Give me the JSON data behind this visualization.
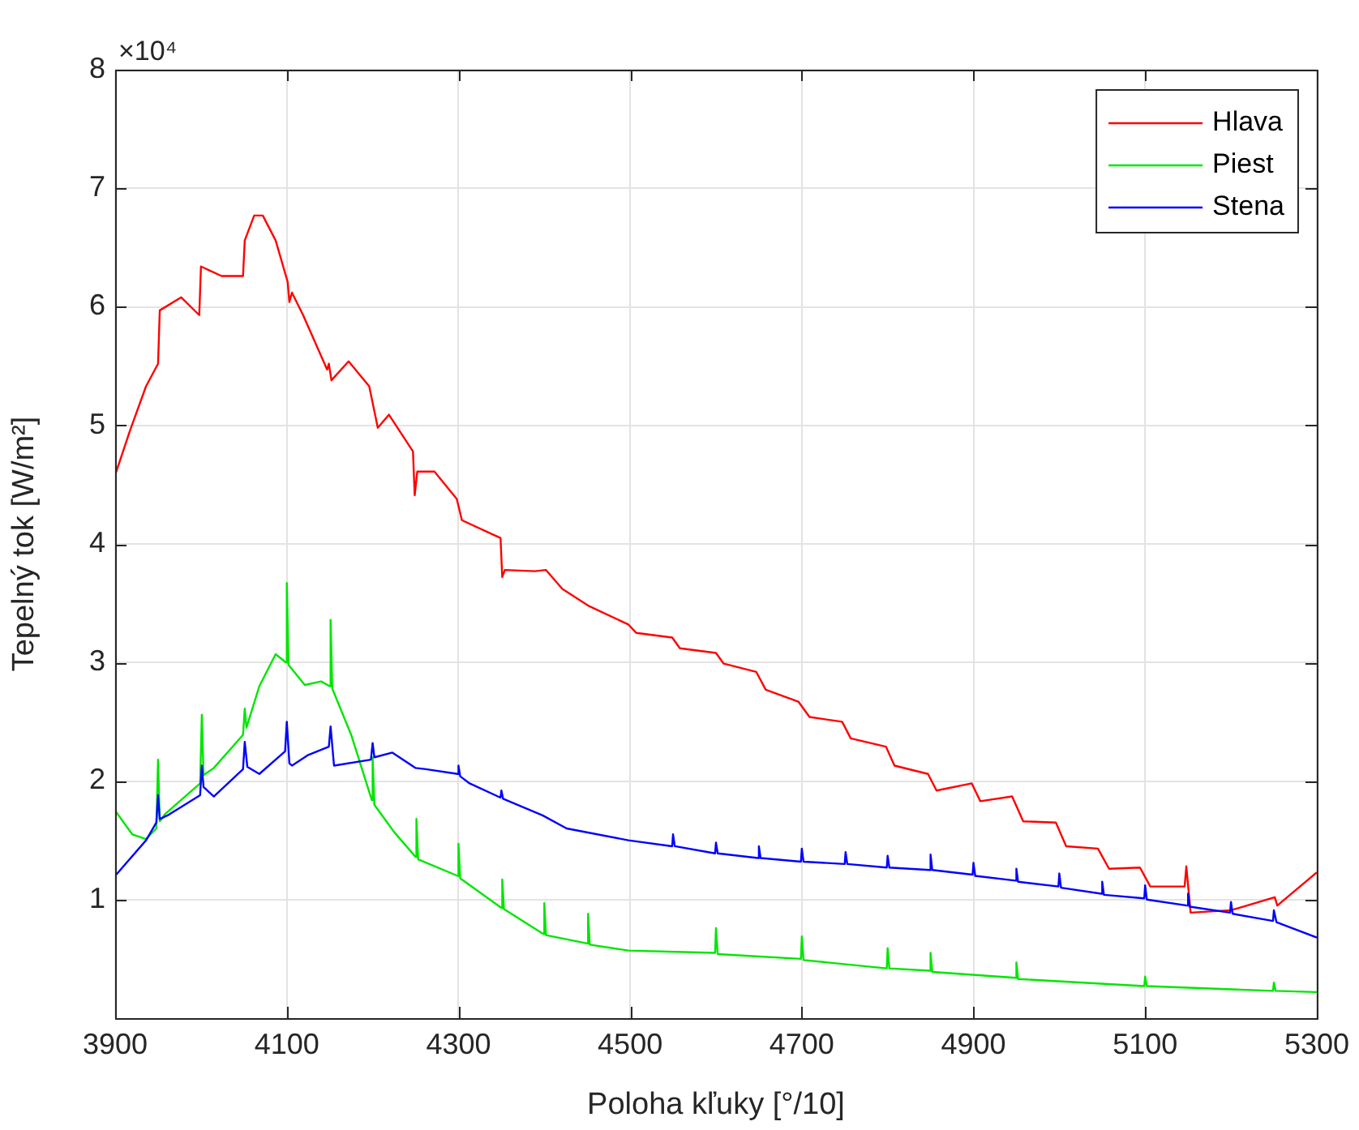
{
  "chart_data": {
    "type": "line",
    "xlabel": "Poloha kľuky [°/10]",
    "ylabel": "Tepelný tok [W/m²]",
    "annotations": [
      "×10⁴"
    ],
    "xlim": [
      3900,
      5300
    ],
    "xticks": [
      3900,
      4100,
      4300,
      4500,
      4700,
      4900,
      5100,
      5300
    ],
    "ylim": [
      0,
      8
    ],
    "yticks": [
      1,
      2,
      3,
      4,
      5,
      6,
      7,
      8
    ],
    "grid": true,
    "legend": "top right",
    "marker": "none",
    "line_style": "solid",
    "series": [
      {
        "name": "Hlava",
        "color": "#ff0000",
        "x": [
          3900,
          3917,
          3936,
          3950,
          3952,
          3977,
          3998,
          4000,
          4024,
          4049,
          4051,
          4062,
          4072,
          4087,
          4101,
          4103,
          4106,
          4119,
          4147,
          4149,
          4152,
          4172,
          4196,
          4206,
          4219,
          4247,
          4249,
          4252,
          4272,
          4298,
          4304,
          4340,
          4349,
          4351,
          4354,
          4389,
          4402,
          4421,
          4451,
          4498,
          4507,
          4549,
          4558,
          4600,
          4609,
          4647,
          4658,
          4696,
          4709,
          4747,
          4757,
          4798,
          4808,
          4847,
          4857,
          4898,
          4908,
          4945,
          4958,
          4996,
          5008,
          5045,
          5058,
          5094,
          5106,
          5146,
          5148,
          5153,
          5200,
          5251,
          5254,
          5300
        ],
        "values": [
          4.58,
          4.95,
          5.33,
          5.52,
          5.97,
          6.08,
          5.93,
          6.34,
          6.26,
          6.26,
          6.56,
          6.77,
          6.77,
          6.56,
          6.21,
          6.04,
          6.12,
          5.93,
          5.47,
          5.52,
          5.38,
          5.54,
          5.33,
          4.98,
          5.09,
          4.78,
          4.41,
          4.61,
          4.61,
          4.38,
          4.2,
          4.08,
          4.05,
          3.72,
          3.78,
          3.77,
          3.78,
          3.62,
          3.48,
          3.32,
          3.25,
          3.21,
          3.12,
          3.08,
          2.99,
          2.92,
          2.77,
          2.67,
          2.54,
          2.5,
          2.36,
          2.29,
          2.13,
          2.06,
          1.92,
          1.98,
          1.83,
          1.87,
          1.66,
          1.65,
          1.45,
          1.43,
          1.26,
          1.27,
          1.11,
          1.11,
          1.28,
          0.89,
          0.91,
          1.02,
          0.95,
          1.23
        ]
      },
      {
        "name": "Piest",
        "color": "#00e600",
        "x": [
          3900,
          3920,
          3936,
          3948,
          3950,
          3952,
          3958,
          3999,
          4001,
          4003,
          4015,
          4049,
          4051,
          4053,
          4068,
          4087,
          4099,
          4100,
          4102,
          4121,
          4140,
          4150,
          4151,
          4153,
          4175,
          4199,
          4200,
          4202,
          4225,
          4250,
          4251,
          4253,
          4299,
          4300,
          4302,
          4350,
          4351,
          4353,
          4399,
          4400,
          4402,
          4450,
          4451,
          4453,
          4498,
          4599,
          4600,
          4602,
          4699,
          4700,
          4702,
          4799,
          4800,
          4802,
          4849,
          4850,
          4852,
          4949,
          4950,
          4952,
          5099,
          5100,
          5102,
          5249,
          5250,
          5252,
          5300
        ],
        "values": [
          1.75,
          1.55,
          1.51,
          1.6,
          2.18,
          1.66,
          1.72,
          1.98,
          2.56,
          2.05,
          2.11,
          2.39,
          2.61,
          2.45,
          2.8,
          3.07,
          3.0,
          3.67,
          2.98,
          2.81,
          2.84,
          2.8,
          3.36,
          2.78,
          2.39,
          1.84,
          2.2,
          1.8,
          1.57,
          1.36,
          1.68,
          1.34,
          1.2,
          1.47,
          1.18,
          0.93,
          1.17,
          0.92,
          0.71,
          0.97,
          0.7,
          0.63,
          0.88,
          0.62,
          0.57,
          0.55,
          0.76,
          0.54,
          0.5,
          0.69,
          0.49,
          0.42,
          0.59,
          0.42,
          0.4,
          0.55,
          0.39,
          0.34,
          0.47,
          0.33,
          0.27,
          0.35,
          0.27,
          0.23,
          0.3,
          0.23,
          0.22
        ]
      },
      {
        "name": "Stena",
        "color": "#0000ff",
        "x": [
          3900,
          3936,
          3948,
          3950,
          3952,
          3961,
          3999,
          4001,
          4003,
          4015,
          4049,
          4051,
          4054,
          4068,
          4098,
          4100,
          4103,
          4106,
          4125,
          4149,
          4151,
          4155,
          4198,
          4200,
          4202,
          4223,
          4250,
          4262,
          4299,
          4300,
          4302,
          4313,
          4349,
          4350,
          4352,
          4398,
          4426,
          4498,
          4549,
          4550,
          4552,
          4599,
          4600,
          4602,
          4649,
          4650,
          4652,
          4699,
          4700,
          4702,
          4750,
          4751,
          4753,
          4799,
          4800,
          4802,
          4849,
          4850,
          4852,
          4899,
          4900,
          4902,
          4949,
          4950,
          4952,
          4999,
          5000,
          5002,
          5049,
          5050,
          5052,
          5099,
          5100,
          5102,
          5149,
          5150,
          5152,
          5199,
          5200,
          5202,
          5249,
          5250,
          5253,
          5300
        ],
        "values": [
          1.2,
          1.5,
          1.65,
          1.88,
          1.68,
          1.71,
          1.88,
          2.13,
          1.95,
          1.87,
          2.1,
          2.33,
          2.12,
          2.06,
          2.25,
          2.5,
          2.15,
          2.13,
          2.22,
          2.29,
          2.46,
          2.13,
          2.18,
          2.32,
          2.2,
          2.24,
          2.11,
          2.1,
          2.06,
          2.13,
          2.04,
          1.98,
          1.86,
          1.92,
          1.85,
          1.71,
          1.6,
          1.5,
          1.45,
          1.55,
          1.45,
          1.39,
          1.48,
          1.39,
          1.35,
          1.45,
          1.35,
          1.32,
          1.43,
          1.32,
          1.3,
          1.4,
          1.3,
          1.27,
          1.37,
          1.27,
          1.25,
          1.38,
          1.25,
          1.21,
          1.31,
          1.2,
          1.16,
          1.26,
          1.15,
          1.11,
          1.22,
          1.1,
          1.05,
          1.15,
          1.04,
          1.01,
          1.12,
          1.0,
          0.95,
          1.05,
          0.94,
          0.89,
          0.98,
          0.88,
          0.82,
          0.91,
          0.81,
          0.68
        ]
      }
    ]
  }
}
